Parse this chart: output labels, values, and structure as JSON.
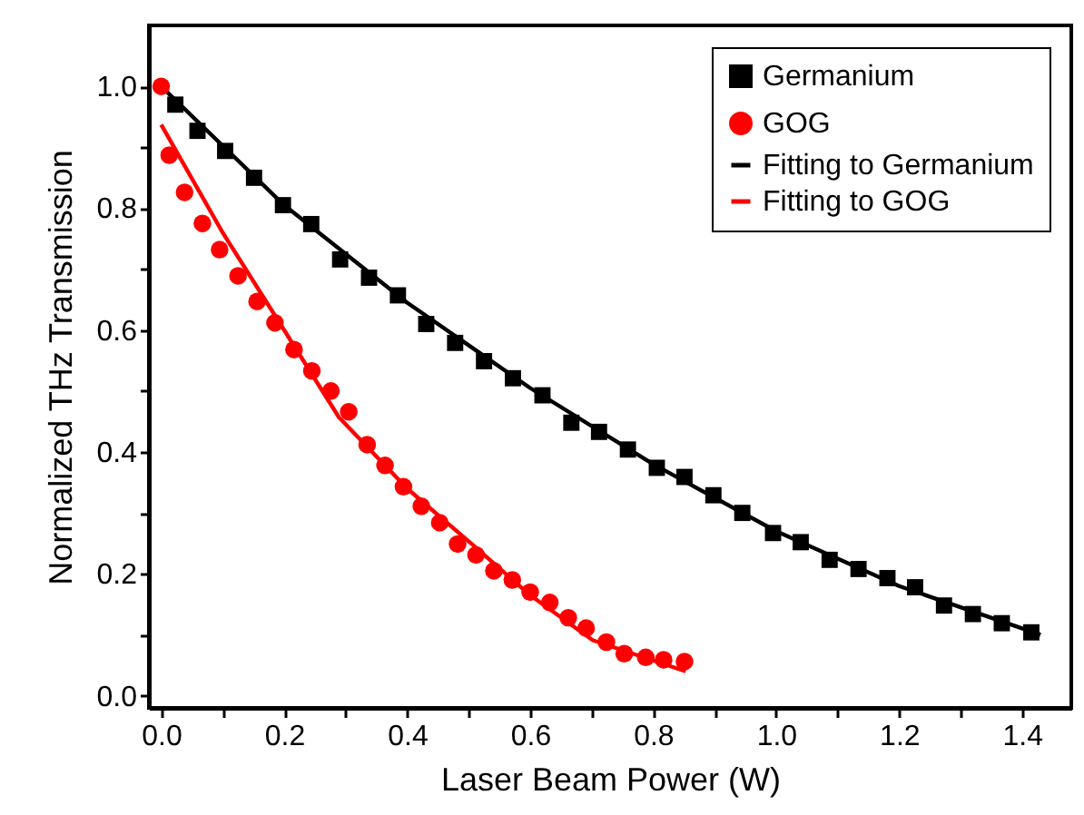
{
  "chart_data": {
    "type": "scatter",
    "xlabel": "Laser Beam Power (W)",
    "ylabel": "Normalized THz Transmission",
    "xlim": [
      -0.02,
      1.48
    ],
    "ylim": [
      -0.02,
      1.1
    ],
    "xticks": [
      {
        "value": 0,
        "label": "0.0"
      },
      {
        "value": 0.1,
        "label": null
      },
      {
        "value": 0.2,
        "label": "0.2"
      },
      {
        "value": 0.3,
        "label": null
      },
      {
        "value": 0.4,
        "label": "0.4"
      },
      {
        "value": 0.5,
        "label": null
      },
      {
        "value": 0.6,
        "label": "0.6"
      },
      {
        "value": 0.7,
        "label": null
      },
      {
        "value": 0.8,
        "label": "0.8"
      },
      {
        "value": 0.9,
        "label": null
      },
      {
        "value": 1,
        "label": "1.0"
      },
      {
        "value": 1.1,
        "label": null
      },
      {
        "value": 1.2,
        "label": "1.2"
      },
      {
        "value": 1.3,
        "label": null
      },
      {
        "value": 1.4,
        "label": "1.4"
      }
    ],
    "yticks": [
      {
        "value": 0,
        "label": "0.0"
      },
      {
        "value": 0.1,
        "label": null
      },
      {
        "value": 0.2,
        "label": "0.2"
      },
      {
        "value": 0.3,
        "label": null
      },
      {
        "value": 0.4,
        "label": "0.4"
      },
      {
        "value": 0.5,
        "label": null
      },
      {
        "value": 0.6,
        "label": "0.6"
      },
      {
        "value": 0.7,
        "label": null
      },
      {
        "value": 0.8,
        "label": "0.8"
      },
      {
        "value": 0.9,
        "label": null
      },
      {
        "value": 1,
        "label": "1.0"
      }
    ],
    "grid": false,
    "legend": "top right",
    "series": [
      {
        "name": "Germanium",
        "marker": "square",
        "color": "#000000",
        "x": [
          0.023,
          0.059,
          0.104,
          0.151,
          0.198,
          0.244,
          0.291,
          0.338,
          0.385,
          0.431,
          0.478,
          0.525,
          0.572,
          0.62,
          0.667,
          0.712,
          0.759,
          0.806,
          0.851,
          0.898,
          0.945,
          0.995,
          1.04,
          1.087,
          1.134,
          1.181,
          1.226,
          1.273,
          1.32,
          1.367,
          1.415
        ],
        "values": [
          0.97,
          0.927,
          0.894,
          0.85,
          0.805,
          0.774,
          0.716,
          0.686,
          0.657,
          0.61,
          0.579,
          0.549,
          0.521,
          0.493,
          0.448,
          0.433,
          0.404,
          0.374,
          0.359,
          0.329,
          0.3,
          0.267,
          0.252,
          0.223,
          0.208,
          0.193,
          0.178,
          0.148,
          0.134,
          0.119,
          0.104
        ]
      },
      {
        "name": "GOG",
        "marker": "circle",
        "color": "#ff0000",
        "x": [
          0,
          0.013,
          0.038,
          0.067,
          0.095,
          0.125,
          0.156,
          0.185,
          0.216,
          0.245,
          0.276,
          0.305,
          0.335,
          0.364,
          0.394,
          0.423,
          0.453,
          0.482,
          0.512,
          0.541,
          0.571,
          0.6,
          0.632,
          0.662,
          0.691,
          0.724,
          0.753,
          0.788,
          0.817,
          0.851
        ],
        "values": [
          1.0,
          0.887,
          0.826,
          0.775,
          0.732,
          0.689,
          0.647,
          0.612,
          0.568,
          0.533,
          0.5,
          0.466,
          0.412,
          0.378,
          0.343,
          0.311,
          0.284,
          0.249,
          0.231,
          0.205,
          0.19,
          0.17,
          0.153,
          0.128,
          0.111,
          0.088,
          0.069,
          0.063,
          0.059,
          0.056
        ]
      },
      {
        "name": "Fitting to Germanium",
        "type": "line",
        "color": "#000000",
        "x": [
          0,
          0.2,
          0.4,
          0.6,
          0.8,
          1.0,
          1.2,
          1.43
        ],
        "values": [
          1.0,
          0.805,
          0.645,
          0.505,
          0.38,
          0.27,
          0.18,
          0.1
        ]
      },
      {
        "name": "Fitting to GOG",
        "type": "line",
        "color": "#ff0000",
        "x": [
          0,
          0.1,
          0.2,
          0.289,
          0.4,
          0.505,
          0.6,
          0.702,
          0.853
        ],
        "values": [
          0.937,
          0.76,
          0.6,
          0.457,
          0.34,
          0.249,
          0.165,
          0.091,
          0.04
        ]
      }
    ]
  }
}
